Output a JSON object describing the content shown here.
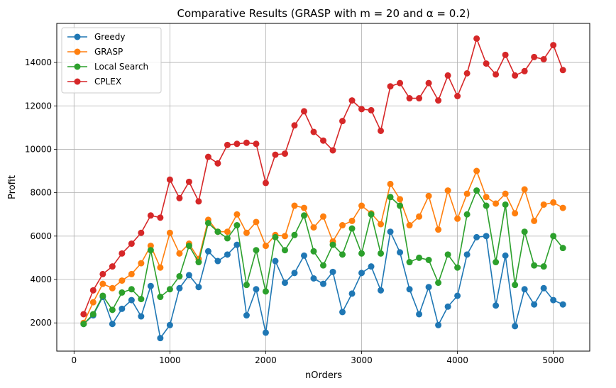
{
  "chart_data": {
    "type": "line",
    "title": "Comparative Results (GRASP with m = 20 and α = 0.2)",
    "xlabel": "nOrders",
    "ylabel": "Profit",
    "xlim": [
      -180,
      5380
    ],
    "ylim": [
      700,
      15800
    ],
    "xticks": [
      0,
      1000,
      2000,
      3000,
      4000,
      5000
    ],
    "xtick_labels": [
      "0",
      "1000",
      "2000",
      "3000",
      "4000",
      "5000"
    ],
    "yticks": [
      2000,
      4000,
      6000,
      8000,
      10000,
      12000,
      14000
    ],
    "ytick_labels": [
      "2000",
      "4000",
      "6000",
      "8000",
      "10000",
      "12000",
      "14000"
    ],
    "grid": true,
    "legend_position": "top-left",
    "x": [
      100,
      200,
      300,
      400,
      500,
      600,
      700,
      800,
      900,
      1000,
      1100,
      1200,
      1300,
      1400,
      1500,
      1600,
      1700,
      1800,
      1900,
      2000,
      2100,
      2200,
      2300,
      2400,
      2500,
      2600,
      2700,
      2800,
      2900,
      3000,
      3100,
      3200,
      3300,
      3400,
      3500,
      3600,
      3700,
      3800,
      3900,
      4000,
      4100,
      4200,
      4300,
      4400,
      4500,
      4600,
      4700,
      4800,
      4900,
      5000,
      5100
    ],
    "series": [
      {
        "name": "Greedy",
        "color": "#1f77b4",
        "values": [
          1950,
          2350,
          3200,
          1950,
          2650,
          3050,
          2300,
          3700,
          1300,
          1900,
          3600,
          4200,
          3650,
          5300,
          4850,
          5150,
          5600,
          2350,
          3550,
          1550,
          4850,
          3850,
          4300,
          5100,
          4050,
          3800,
          4350,
          2500,
          3350,
          4300,
          4600,
          3500,
          6200,
          5250,
          3550,
          2400,
          3650,
          1900,
          2750,
          3250,
          5150,
          5950,
          6000,
          2800,
          5100,
          1850,
          3550,
          2850,
          3600,
          3050,
          2850
        ]
      },
      {
        "name": "GRASP",
        "color": "#ff7f0e",
        "values": [
          2000,
          2950,
          3800,
          3600,
          3950,
          4250,
          4750,
          5550,
          4550,
          6150,
          5200,
          5650,
          4950,
          6750,
          6200,
          6200,
          7000,
          6150,
          6650,
          5550,
          6050,
          6000,
          7400,
          7300,
          6400,
          6900,
          5750,
          6500,
          6700,
          7400,
          7050,
          6550,
          8400,
          7700,
          6500,
          6900,
          7850,
          6300,
          8100,
          6800,
          7950,
          9000,
          7800,
          7500,
          7950,
          7050,
          8150,
          6700,
          7450,
          7550,
          7300
        ]
      },
      {
        "name": "Local Search",
        "color": "#2ca02c",
        "values": [
          1950,
          2400,
          3250,
          2600,
          3400,
          3550,
          3100,
          5350,
          3200,
          3550,
          4150,
          5550,
          4800,
          6600,
          6200,
          5900,
          6500,
          3750,
          5350,
          3450,
          5950,
          5350,
          6050,
          6950,
          5300,
          4650,
          5600,
          5150,
          6350,
          5200,
          7000,
          5200,
          7800,
          7400,
          4800,
          5000,
          4900,
          3850,
          5150,
          4550,
          7000,
          8100,
          7400,
          4800,
          7450,
          3750,
          6200,
          4650,
          4600,
          6000,
          5450
        ]
      },
      {
        "name": "CPLEX",
        "color": "#d62728",
        "values": [
          2400,
          3500,
          4250,
          4600,
          5200,
          5650,
          6150,
          6950,
          6850,
          8600,
          7750,
          8500,
          7600,
          9650,
          9350,
          10200,
          10250,
          10300,
          10250,
          8450,
          9750,
          9800,
          11100,
          11750,
          10800,
          10400,
          9950,
          11300,
          12250,
          11850,
          11800,
          10850,
          12900,
          13050,
          12350,
          12350,
          13050,
          12250,
          13400,
          12450,
          13500,
          15100,
          13950,
          13450,
          14350,
          13400,
          13600,
          14250,
          14150,
          14800,
          13650
        ]
      }
    ]
  }
}
